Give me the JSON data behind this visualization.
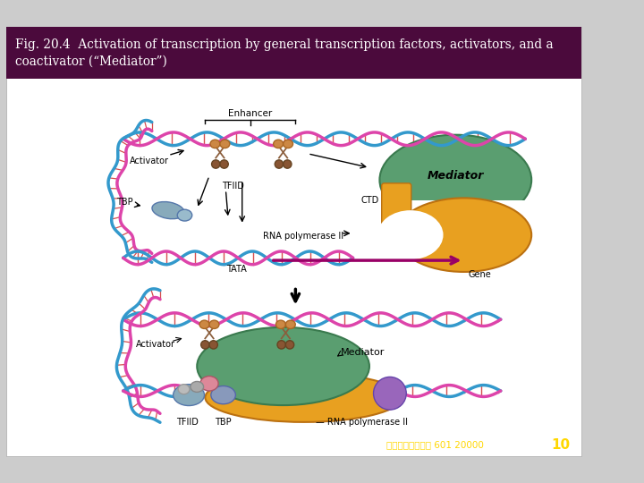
{
  "title_line1": "Fig. 20.4  Activation of transcription by general transcription factors, activators, and a",
  "title_line2": "coactivator (“Mediator”)",
  "header_bg_color": "#4B0A3C",
  "slide_bg_color": "#F0F0F0",
  "title_text_color": "#FFFFFF",
  "title_fontsize": 10.5,
  "bottom_text": "台大生化院透傳學 601 20000",
  "bottom_text_color": "#FFD700",
  "page_number": "10",
  "page_number_color": "#FFD700",
  "dna_color1": "#3399CC",
  "dna_color2": "#DD44AA",
  "dna_cross_color": "#CC2222",
  "activator_body_color": "#CC8844",
  "activator_stem_color": "#8B5E3C",
  "mediator_color": "#5A9E70",
  "rnapol_color": "#E8A020",
  "tfiid_color": "#88AABB",
  "tbp_color": "#8899BB",
  "pink_color": "#DD8899",
  "purple_color": "#9966BB",
  "arrow_color": "#880055"
}
